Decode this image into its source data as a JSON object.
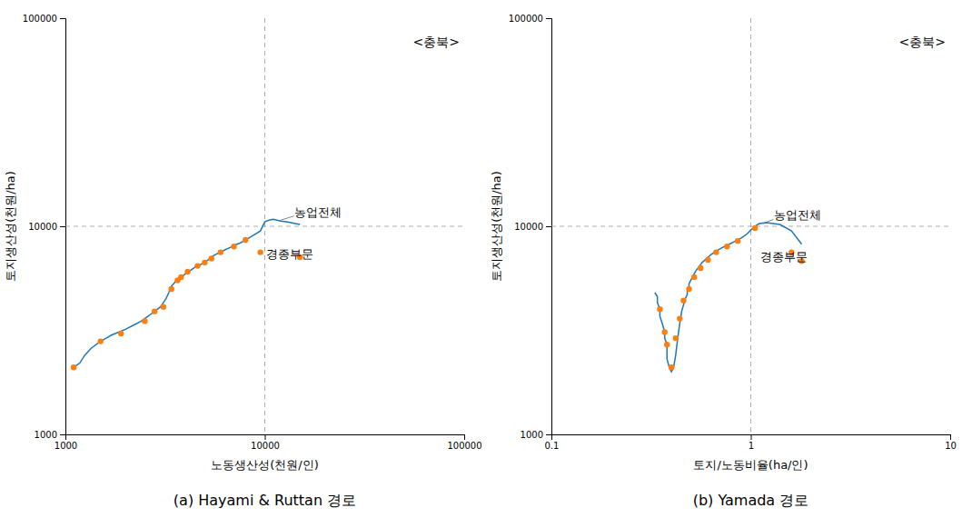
{
  "chart_data": [
    {
      "type": "line",
      "title": "<충북>",
      "xlabel": "노동생산성(천원/인)",
      "ylabel": "토지생산성(천원/ha)",
      "caption": "(a)  Hayami & Ruttan  경로",
      "log": true,
      "xlim": [
        1000,
        100000
      ],
      "ylim": [
        1000,
        100000
      ],
      "xticks": [
        1000,
        10000,
        100000
      ],
      "yticks": [
        1000,
        10000,
        100000
      ],
      "vlines": [
        10000
      ],
      "hlines": [
        10000
      ],
      "series": [
        {
          "type": "line",
          "x": [
            1100,
            1180,
            1250,
            1350,
            1500,
            1600,
            1700,
            1850,
            2000,
            2200,
            2400,
            2600,
            2700,
            2800,
            2900,
            3000,
            3100,
            3200,
            3300,
            3350,
            3400,
            3500,
            3550,
            3600,
            3650,
            3700,
            3750,
            3800,
            3900,
            4000,
            4100,
            4200,
            4300,
            4500,
            4700,
            4900,
            5100,
            5300,
            5500,
            5800,
            6000,
            6300,
            6700,
            7000,
            7500,
            8000,
            8500,
            9000,
            9500,
            10000,
            10500,
            11000,
            12000,
            13000,
            15000
          ],
          "values": [
            2100,
            2200,
            2400,
            2600,
            2800,
            2900,
            3000,
            3100,
            3200,
            3350,
            3500,
            3700,
            3800,
            3900,
            4000,
            4100,
            4300,
            4500,
            4800,
            5000,
            5150,
            5300,
            5400,
            5500,
            5550,
            5600,
            5650,
            5700,
            5800,
            5900,
            6000,
            6100,
            6200,
            6400,
            6500,
            6650,
            6800,
            7000,
            7200,
            7400,
            7500,
            7700,
            7900,
            8100,
            8300,
            8600,
            8900,
            9200,
            9500,
            10500,
            10700,
            10800,
            10600,
            10500,
            10200
          ]
        },
        {
          "type": "scatter",
          "x": [
            1100,
            1500,
            1900,
            2500,
            2800,
            3100,
            3400,
            3650,
            3800,
            4100,
            4600,
            5000,
            5400,
            6000,
            7000,
            8000,
            9500,
            15000
          ],
          "values": [
            2100,
            2800,
            3050,
            3500,
            3900,
            4100,
            5000,
            5500,
            5700,
            6050,
            6450,
            6700,
            7000,
            7500,
            8000,
            8600,
            7500,
            7100
          ]
        }
      ],
      "annotations": [
        {
          "text": "농업전체",
          "x": 14000,
          "y": 11200,
          "arrow_x": 12000,
          "arrow_y": 10700
        },
        {
          "text": "경종부문",
          "x": 10200,
          "y": 7000
        }
      ]
    },
    {
      "type": "line",
      "title": "<충북>",
      "xlabel": "토지/노동비율(ha/인)",
      "ylabel": "토지생산성(천원/ha)",
      "caption": "(b)  Yamada  경로",
      "log": true,
      "xlim": [
        0.1,
        10
      ],
      "ylim": [
        1000,
        100000
      ],
      "xticks": [
        0.1,
        1,
        10
      ],
      "yticks": [
        1000,
        10000,
        100000
      ],
      "vlines": [
        1.0
      ],
      "hlines": [
        10000
      ],
      "series": [
        {
          "type": "line",
          "x": [
            0.33,
            0.34,
            0.34,
            0.35,
            0.35,
            0.36,
            0.37,
            0.37,
            0.38,
            0.38,
            0.38,
            0.39,
            0.4,
            0.41,
            0.42,
            0.43,
            0.44,
            0.45,
            0.46,
            0.47,
            0.48,
            0.48,
            0.49,
            0.49,
            0.5,
            0.51,
            0.52,
            0.53,
            0.55,
            0.57,
            0.6,
            0.63,
            0.67,
            0.72,
            0.78,
            0.84,
            0.9,
            0.96,
            1.0,
            1.05,
            1.1,
            1.2,
            1.4,
            1.6,
            1.8
          ],
          "values": [
            4800,
            4600,
            4300,
            4000,
            3700,
            3400,
            3100,
            2900,
            2700,
            2500,
            2300,
            2100,
            2000,
            2100,
            2400,
            2900,
            3400,
            3900,
            4200,
            4500,
            4700,
            4900,
            5100,
            5300,
            5500,
            5700,
            5900,
            6100,
            6400,
            6700,
            7000,
            7300,
            7600,
            7900,
            8200,
            8500,
            8800,
            9200,
            9600,
            10000,
            10300,
            10400,
            10200,
            9500,
            8200
          ]
        },
        {
          "type": "scatter",
          "x": [
            0.35,
            0.37,
            0.38,
            0.4,
            0.42,
            0.44,
            0.46,
            0.49,
            0.52,
            0.56,
            0.61,
            0.67,
            0.76,
            0.86,
            1.05,
            1.6,
            1.8
          ],
          "values": [
            4000,
            3100,
            2700,
            2100,
            2900,
            3600,
            4400,
            5000,
            5700,
            6300,
            6900,
            7500,
            8000,
            8500,
            9800,
            7500,
            6800
          ]
        }
      ],
      "annotations": [
        {
          "text": "농업전체",
          "x": 1.3,
          "y": 10800,
          "arrow_x": 1.15,
          "arrow_y": 10300
        },
        {
          "text": "경종부문",
          "x": 1.12,
          "y": 6800
        }
      ]
    }
  ]
}
